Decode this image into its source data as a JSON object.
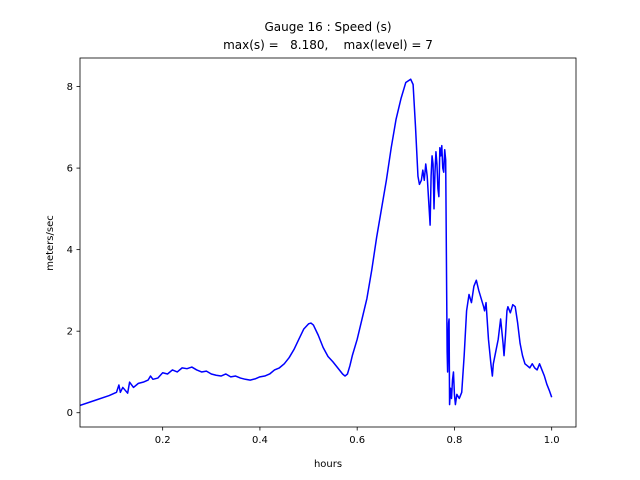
{
  "chart_data": {
    "type": "line",
    "title": "Gauge 16 : Speed (s)",
    "subtitle": "max(s) =   8.180,    max(level) = 7",
    "xlabel": "hours",
    "ylabel": "meters/sec",
    "xlim": [
      0.03,
      1.05
    ],
    "ylim": [
      -0.35,
      8.7
    ],
    "xticks": [
      0.2,
      0.4,
      0.6,
      0.8,
      1.0
    ],
    "xtick_labels": [
      "0.2",
      "0.4",
      "0.6",
      "0.8",
      "1.0"
    ],
    "yticks": [
      0,
      2,
      4,
      6,
      8
    ],
    "ytick_labels": [
      "0",
      "2",
      "4",
      "6",
      "8"
    ],
    "grid": false,
    "series": [
      {
        "color": "#0000ff",
        "x": [
          0.03,
          0.06,
          0.09,
          0.105,
          0.11,
          0.113,
          0.118,
          0.123,
          0.128,
          0.132,
          0.14,
          0.15,
          0.16,
          0.17,
          0.175,
          0.18,
          0.19,
          0.2,
          0.21,
          0.22,
          0.23,
          0.24,
          0.25,
          0.26,
          0.27,
          0.28,
          0.29,
          0.3,
          0.31,
          0.32,
          0.33,
          0.34,
          0.35,
          0.36,
          0.37,
          0.38,
          0.39,
          0.4,
          0.41,
          0.42,
          0.43,
          0.44,
          0.45,
          0.46,
          0.47,
          0.48,
          0.49,
          0.5,
          0.505,
          0.51,
          0.52,
          0.53,
          0.54,
          0.55,
          0.56,
          0.57,
          0.575,
          0.58,
          0.585,
          0.59,
          0.6,
          0.61,
          0.62,
          0.63,
          0.64,
          0.65,
          0.66,
          0.67,
          0.68,
          0.69,
          0.7,
          0.71,
          0.715,
          0.72,
          0.725,
          0.728,
          0.732,
          0.735,
          0.738,
          0.741,
          0.744,
          0.747,
          0.75,
          0.752,
          0.754,
          0.756,
          0.758,
          0.76,
          0.762,
          0.764,
          0.766,
          0.768,
          0.77,
          0.772,
          0.774,
          0.776,
          0.778,
          0.78,
          0.782,
          0.784,
          0.785,
          0.786,
          0.788,
          0.789,
          0.79,
          0.792,
          0.794,
          0.796,
          0.798,
          0.8,
          0.802,
          0.805,
          0.81,
          0.815,
          0.82,
          0.825,
          0.83,
          0.835,
          0.84,
          0.845,
          0.85,
          0.855,
          0.86,
          0.862,
          0.865,
          0.87,
          0.875,
          0.878,
          0.88,
          0.885,
          0.89,
          0.895,
          0.9,
          0.902,
          0.905,
          0.908,
          0.91,
          0.915,
          0.92,
          0.925,
          0.93,
          0.935,
          0.94,
          0.945,
          0.95,
          0.955,
          0.96,
          0.965,
          0.97,
          0.975,
          0.98,
          0.985,
          0.99,
          0.995,
          1.0
        ],
        "y": [
          0.18,
          0.3,
          0.42,
          0.5,
          0.68,
          0.5,
          0.62,
          0.55,
          0.48,
          0.75,
          0.62,
          0.72,
          0.75,
          0.8,
          0.9,
          0.82,
          0.85,
          0.98,
          0.95,
          1.05,
          1.0,
          1.1,
          1.08,
          1.12,
          1.05,
          1.0,
          1.02,
          0.95,
          0.92,
          0.9,
          0.95,
          0.88,
          0.9,
          0.85,
          0.82,
          0.8,
          0.83,
          0.88,
          0.9,
          0.95,
          1.05,
          1.1,
          1.2,
          1.35,
          1.55,
          1.8,
          2.05,
          2.18,
          2.2,
          2.15,
          1.9,
          1.6,
          1.38,
          1.25,
          1.1,
          0.95,
          0.9,
          0.95,
          1.15,
          1.4,
          1.8,
          2.3,
          2.8,
          3.5,
          4.3,
          5.0,
          5.7,
          6.5,
          7.2,
          7.7,
          8.1,
          8.18,
          8.05,
          7.0,
          5.8,
          5.6,
          5.7,
          5.95,
          5.7,
          6.1,
          5.8,
          5.2,
          4.6,
          5.8,
          6.3,
          6.1,
          5.0,
          5.9,
          6.4,
          6.1,
          5.5,
          5.3,
          6.5,
          6.3,
          6.55,
          6.0,
          5.9,
          6.45,
          6.2,
          3.0,
          1.5,
          1.0,
          2.2,
          2.3,
          0.2,
          0.6,
          0.35,
          0.8,
          1.0,
          0.45,
          0.2,
          0.45,
          0.35,
          0.5,
          1.4,
          2.5,
          2.9,
          2.7,
          3.1,
          3.25,
          3.0,
          2.8,
          2.6,
          2.5,
          2.7,
          1.8,
          1.2,
          0.9,
          1.2,
          1.5,
          1.8,
          2.3,
          1.7,
          1.4,
          1.9,
          2.5,
          2.6,
          2.45,
          2.65,
          2.6,
          2.2,
          1.7,
          1.4,
          1.2,
          1.15,
          1.1,
          1.2,
          1.1,
          1.05,
          1.2,
          1.05,
          0.9,
          0.7,
          0.55,
          0.38
        ]
      }
    ]
  }
}
